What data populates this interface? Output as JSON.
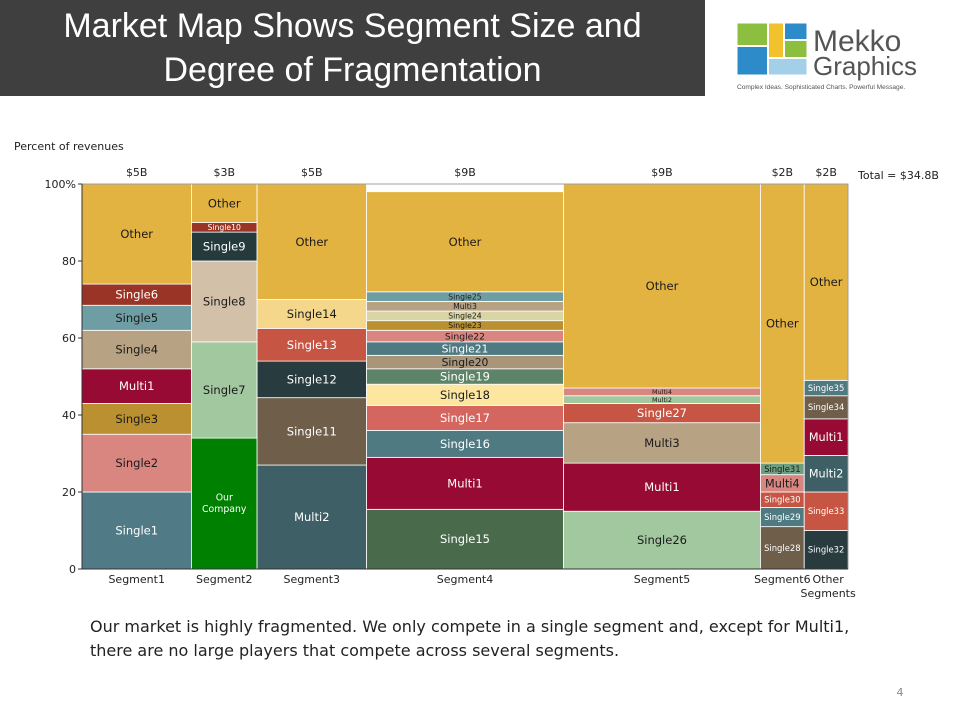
{
  "slide": {
    "title_line1": "Market Map Shows Segment Size and",
    "title_line2": "Degree of Fragmentation",
    "caption": "Our market is highly fragmented.  We only compete in a single segment and, except for Multi1, there are no large players that compete across several segments.",
    "page_number": "4"
  },
  "logo": {
    "line1": "Mekko",
    "line2": "Graphics",
    "tagline": "Complex Ideas. Sophisticated Charts. Powerful Message."
  },
  "chart_data": {
    "type": "marimekko",
    "title": "",
    "ylabel": "Percent of revenues",
    "ylim": [
      0,
      100
    ],
    "y_ticks": [
      0,
      20,
      40,
      60,
      80,
      100
    ],
    "y_tick_labels": [
      "0",
      "20",
      "40",
      "60",
      "80",
      "100%"
    ],
    "total_label": "Total = $34.8B",
    "segments": [
      {
        "label": "Segment1",
        "size_label": "$5B",
        "width": 5,
        "blocks": [
          {
            "name": "Single1",
            "value": 20,
            "color": "#507a85"
          },
          {
            "name": "Single2",
            "value": 15,
            "color": "#d98580"
          },
          {
            "name": "Single3",
            "value": 8,
            "color": "#bb9030"
          },
          {
            "name": "Multi1",
            "value": 9,
            "color": "#970a33"
          },
          {
            "name": "Single4",
            "value": 10,
            "color": "#b8a284"
          },
          {
            "name": "Single5",
            "value": 6.5,
            "color": "#6e9ea4"
          },
          {
            "name": "Single6",
            "value": 5.5,
            "color": "#9a3426"
          },
          {
            "name": "Other",
            "value": 26,
            "color": "#e3b342"
          }
        ]
      },
      {
        "label": "Segment2",
        "size_label": "$3B",
        "width": 3,
        "blocks": [
          {
            "name": "Our Company",
            "value": 34,
            "color": "#008000"
          },
          {
            "name": "Single7",
            "value": 25,
            "color": "#a2c8a0"
          },
          {
            "name": "Single8",
            "value": 21,
            "color": "#d2c0a8"
          },
          {
            "name": "Single9",
            "value": 7.5,
            "color": "#253a3d"
          },
          {
            "name": "Single10",
            "value": 2.5,
            "color": "#9a3426"
          },
          {
            "name": "Other",
            "value": 10,
            "color": "#e3b342"
          }
        ]
      },
      {
        "label": "Segment3",
        "size_label": "$5B",
        "width": 5,
        "blocks": [
          {
            "name": "Multi2",
            "value": 27,
            "color": "#3e5f66"
          },
          {
            "name": "Single11",
            "value": 17.5,
            "color": "#6e5e4a"
          },
          {
            "name": "Single12",
            "value": 9.5,
            "color": "#283b3e"
          },
          {
            "name": "Single13",
            "value": 8.5,
            "color": "#c65543"
          },
          {
            "name": "Single14",
            "value": 7.5,
            "color": "#f5d78b"
          },
          {
            "name": "Other",
            "value": 30,
            "color": "#e3b342"
          }
        ]
      },
      {
        "label": "Segment4",
        "size_label": "$9B",
        "width": 9,
        "blocks": [
          {
            "name": "Single15",
            "value": 15.5,
            "color": "#4a6b4b"
          },
          {
            "name": "Multi1",
            "value": 13.5,
            "color": "#970a33"
          },
          {
            "name": "Single16",
            "value": 7,
            "color": "#4f7a82"
          },
          {
            "name": "Single17",
            "value": 6.5,
            "color": "#d4665f"
          },
          {
            "name": "Single18",
            "value": 5.5,
            "color": "#fde7a0"
          },
          {
            "name": "Single19",
            "value": 4,
            "color": "#5d8468"
          },
          {
            "name": "Single20",
            "value": 3.5,
            "color": "#a8957a"
          },
          {
            "name": "Single21",
            "value": 3.5,
            "color": "#4f7a82"
          },
          {
            "name": "Single22",
            "value": 3,
            "color": "#d98580"
          },
          {
            "name": "Single23",
            "value": 2.5,
            "color": "#bb9030"
          },
          {
            "name": "Single24",
            "value": 2.5,
            "color": "#d8d6a4"
          },
          {
            "name": "Multi3",
            "value": 2.5,
            "color": "#b8a284"
          },
          {
            "name": "Single25",
            "value": 2.5,
            "color": "#6e9ea4"
          },
          {
            "name": "Other",
            "value": 26,
            "color": "#e3b342"
          }
        ]
      },
      {
        "label": "Segment5",
        "size_label": "$9B",
        "width": 9,
        "blocks": [
          {
            "name": "Single26",
            "value": 15,
            "color": "#a2c8a0"
          },
          {
            "name": "Multi1",
            "value": 12.5,
            "color": "#970a33"
          },
          {
            "name": "Multi3",
            "value": 10.5,
            "color": "#b8a284"
          },
          {
            "name": "Single27",
            "value": 5,
            "color": "#c65543"
          },
          {
            "name": "Multi2",
            "value": 2,
            "color": "#a2c8a0"
          },
          {
            "name": "Multi4",
            "value": 2,
            "color": "#d98580"
          },
          {
            "name": "Other",
            "value": 53,
            "color": "#e3b342"
          }
        ]
      },
      {
        "label": "Segment6",
        "size_label": "$2B",
        "width": 2,
        "blocks": [
          {
            "name": "Single28",
            "value": 11,
            "color": "#6e5e4a"
          },
          {
            "name": "Single29",
            "value": 5,
            "color": "#4f7a82"
          },
          {
            "name": "Single30",
            "value": 4,
            "color": "#c65543"
          },
          {
            "name": "Multi4",
            "value": 4.5,
            "color": "#d98580"
          },
          {
            "name": "Single31",
            "value": 3,
            "color": "#6e9e80"
          },
          {
            "name": "Other",
            "value": 72.5,
            "color": "#e3b342"
          }
        ]
      },
      {
        "label": "Other Segments",
        "size_label": "$2B",
        "width": 2,
        "blocks": [
          {
            "name": "Single32",
            "value": 10,
            "color": "#283b3e"
          },
          {
            "name": "Single33",
            "value": 10,
            "color": "#c65543"
          },
          {
            "name": "Multi2",
            "value": 9.5,
            "color": "#3e5f66"
          },
          {
            "name": "Multi1",
            "value": 9.5,
            "color": "#970a33"
          },
          {
            "name": "Single34",
            "value": 6,
            "color": "#6e5e4a"
          },
          {
            "name": "Single35",
            "value": 4,
            "color": "#4f7a82"
          },
          {
            "name": "Other",
            "value": 51,
            "color": "#e3b342"
          }
        ]
      }
    ]
  }
}
